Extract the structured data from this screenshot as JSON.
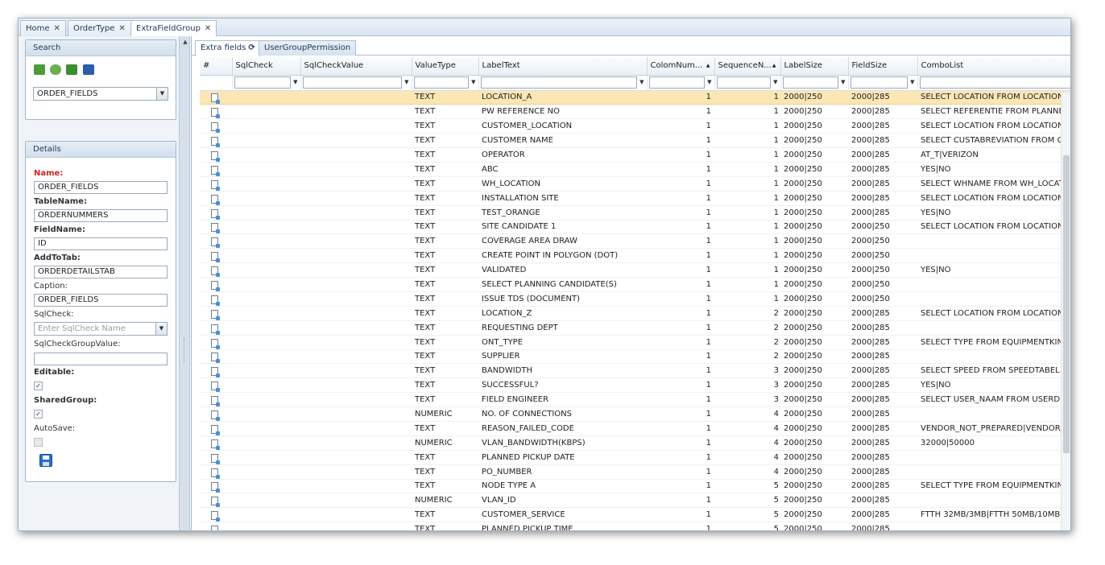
{
  "top_tabs": [
    {
      "label": "Home"
    },
    {
      "label": "OrderType"
    },
    {
      "label": "ExtraFieldGroup"
    }
  ],
  "search": {
    "title": "Search",
    "icons": [
      "export-icon",
      "refresh-globe-icon",
      "import-icon",
      "binoculars-icon"
    ],
    "selected": "ORDER_FIELDS"
  },
  "details": {
    "title": "Details",
    "name_label": "Name:",
    "name_value": "ORDER_FIELDS",
    "table_label": "TableName:",
    "table_value": "ORDERNUMMERS",
    "field_label": "FieldName:",
    "field_value": "ID",
    "addtotab_label": "AddToTab:",
    "addtotab_value": "ORDERDETAILSTAB",
    "caption_label": "Caption:",
    "caption_value": "ORDER_FIELDS",
    "sqlcheck_label": "SqlCheck:",
    "sqlcheck_placeholder": "Enter SqlCheck Name",
    "sqlcheckgroup_label": "SqlCheckGroupValue:",
    "sqlcheckgroup_value": "",
    "editable_label": "Editable:",
    "editable_checked": true,
    "shared_label": "SharedGroup:",
    "shared_checked": true,
    "autosave_label": "AutoSave:",
    "autosave_checked": false
  },
  "sub_tabs": [
    {
      "label": "Extra fields"
    },
    {
      "label": "UserGroupPermission"
    }
  ],
  "columns": [
    "#",
    "SqlCheck",
    "SqlCheckValue",
    "ValueType",
    "LabelText",
    "ColomNum...",
    "SequenceN...",
    "LabelSize",
    "FieldSize",
    "ComboList"
  ],
  "rows": [
    {
      "value_type": "TEXT",
      "label_text": "LOCATION_A",
      "colom": "1",
      "seq": "1",
      "label_size": "2000|250",
      "field_size": "2000|285",
      "combo": "SELECT LOCATION FROM LOCATIONS"
    },
    {
      "value_type": "TEXT",
      "label_text": "PW REFERENCE NO",
      "colom": "1",
      "seq": "1",
      "label_size": "2000|250",
      "field_size": "2000|285",
      "combo": "SELECT REFERENTIE FROM PLANNED"
    },
    {
      "value_type": "TEXT",
      "label_text": "CUSTOMER_LOCATION",
      "colom": "1",
      "seq": "1",
      "label_size": "2000|250",
      "field_size": "2000|285",
      "combo": "SELECT LOCATION FROM LOCATIONS"
    },
    {
      "value_type": "TEXT",
      "label_text": "CUSTOMER NAME",
      "colom": "1",
      "seq": "1",
      "label_size": "2000|250",
      "field_size": "2000|285",
      "combo": "SELECT CUSTABREVIATION FROM CU"
    },
    {
      "value_type": "TEXT",
      "label_text": "OPERATOR",
      "colom": "1",
      "seq": "1",
      "label_size": "2000|250",
      "field_size": "2000|285",
      "combo": "AT_T|VERIZON"
    },
    {
      "value_type": "TEXT",
      "label_text": "ABC",
      "colom": "1",
      "seq": "1",
      "label_size": "2000|250",
      "field_size": "2000|285",
      "combo": "YES|NO"
    },
    {
      "value_type": "TEXT",
      "label_text": "WH_LOCATION",
      "colom": "1",
      "seq": "1",
      "label_size": "2000|250",
      "field_size": "2000|285",
      "combo": "SELECT WHNAME FROM WH_LOCATI"
    },
    {
      "value_type": "TEXT",
      "label_text": "INSTALLATION SITE",
      "colom": "1",
      "seq": "1",
      "label_size": "2000|250",
      "field_size": "2000|285",
      "combo": "SELECT LOCATION FROM LOCATIONS"
    },
    {
      "value_type": "TEXT",
      "label_text": "TEST_ORANGE",
      "colom": "1",
      "seq": "1",
      "label_size": "2000|250",
      "field_size": "2000|285",
      "combo": "YES|NO"
    },
    {
      "value_type": "TEXT",
      "label_text": "SITE CANDIDATE 1",
      "colom": "1",
      "seq": "1",
      "label_size": "2000|250",
      "field_size": "2000|250",
      "combo": "SELECT LOCATION FROM LOCATIONS"
    },
    {
      "value_type": "TEXT",
      "label_text": "COVERAGE AREA DRAW",
      "colom": "1",
      "seq": "1",
      "label_size": "2000|250",
      "field_size": "2000|250",
      "combo": ""
    },
    {
      "value_type": "TEXT",
      "label_text": "CREATE POINT IN POLYGON (DOT)",
      "colom": "1",
      "seq": "1",
      "label_size": "2000|250",
      "field_size": "2000|250",
      "combo": ""
    },
    {
      "value_type": "TEXT",
      "label_text": "VALIDATED",
      "colom": "1",
      "seq": "1",
      "label_size": "2000|250",
      "field_size": "2000|250",
      "combo": "YES|NO"
    },
    {
      "value_type": "TEXT",
      "label_text": "SELECT PLANNING CANDIDATE(S)",
      "colom": "1",
      "seq": "1",
      "label_size": "2000|250",
      "field_size": "2000|250",
      "combo": ""
    },
    {
      "value_type": "TEXT",
      "label_text": "ISSUE TDS (DOCUMENT)",
      "colom": "1",
      "seq": "1",
      "label_size": "2000|250",
      "field_size": "2000|250",
      "combo": ""
    },
    {
      "value_type": "TEXT",
      "label_text": "LOCATION_Z",
      "colom": "1",
      "seq": "2",
      "label_size": "2000|250",
      "field_size": "2000|285",
      "combo": "SELECT LOCATION FROM LOCATIONS"
    },
    {
      "value_type": "TEXT",
      "label_text": "REQUESTING DEPT",
      "colom": "1",
      "seq": "2",
      "label_size": "2000|250",
      "field_size": "2000|285",
      "combo": ""
    },
    {
      "value_type": "TEXT",
      "label_text": "ONT_TYPE",
      "colom": "1",
      "seq": "2",
      "label_size": "2000|250",
      "field_size": "2000|285",
      "combo": "SELECT TYPE FROM EQUIPMENTKIND"
    },
    {
      "value_type": "TEXT",
      "label_text": "SUPPLIER",
      "colom": "1",
      "seq": "2",
      "label_size": "2000|250",
      "field_size": "2000|285",
      "combo": ""
    },
    {
      "value_type": "TEXT",
      "label_text": "BANDWIDTH",
      "colom": "1",
      "seq": "3",
      "label_size": "2000|250",
      "field_size": "2000|285",
      "combo": "SELECT SPEED FROM SPEEDTABEL #"
    },
    {
      "value_type": "TEXT",
      "label_text": "SUCCESSFUL?",
      "colom": "1",
      "seq": "3",
      "label_size": "2000|250",
      "field_size": "2000|285",
      "combo": "YES|NO"
    },
    {
      "value_type": "TEXT",
      "label_text": "FIELD ENGINEER",
      "colom": "1",
      "seq": "3",
      "label_size": "2000|250",
      "field_size": "2000|285",
      "combo": "SELECT USER_NAAM FROM USERDET"
    },
    {
      "value_type": "NUMERIC",
      "label_text": "NO. OF CONNECTIONS",
      "colom": "1",
      "seq": "4",
      "label_size": "2000|250",
      "field_size": "2000|285",
      "combo": ""
    },
    {
      "value_type": "TEXT",
      "label_text": "REASON_FAILED_CODE",
      "colom": "1",
      "seq": "4",
      "label_size": "2000|250",
      "field_size": "2000|285",
      "combo": "VENDOR_NOT_PREPARED|VENDOR_"
    },
    {
      "value_type": "NUMERIC",
      "label_text": "VLAN_BANDWIDTH(KBPS)",
      "colom": "1",
      "seq": "4",
      "label_size": "2000|250",
      "field_size": "2000|285",
      "combo": "32000|50000"
    },
    {
      "value_type": "TEXT",
      "label_text": "PLANNED PICKUP DATE",
      "colom": "1",
      "seq": "4",
      "label_size": "2000|250",
      "field_size": "2000|285",
      "combo": ""
    },
    {
      "value_type": "TEXT",
      "label_text": "PO_NUMBER",
      "colom": "1",
      "seq": "4",
      "label_size": "2000|250",
      "field_size": "2000|285",
      "combo": ""
    },
    {
      "value_type": "TEXT",
      "label_text": "NODE TYPE A",
      "colom": "1",
      "seq": "5",
      "label_size": "2000|250",
      "field_size": "2000|285",
      "combo": "SELECT TYPE FROM EQUIPMENTKIND"
    },
    {
      "value_type": "NUMERIC",
      "label_text": "VLAN_ID",
      "colom": "1",
      "seq": "5",
      "label_size": "2000|250",
      "field_size": "2000|285",
      "combo": ""
    },
    {
      "value_type": "TEXT",
      "label_text": "CUSTOMER_SERVICE",
      "colom": "1",
      "seq": "5",
      "label_size": "2000|250",
      "field_size": "2000|285",
      "combo": "FTTH 32MB/3MB|FTTH 50MB/10MB"
    },
    {
      "value_type": "TEXT",
      "label_text": "PLANNED PICKUP TIME",
      "colom": "1",
      "seq": "5",
      "label_size": "2000|250",
      "field_size": "2000|285",
      "combo": ""
    }
  ],
  "colors": {
    "selected_row": "#fbe6b4",
    "accent_blue": "#2c6fc2",
    "required_label": "#d42020"
  }
}
